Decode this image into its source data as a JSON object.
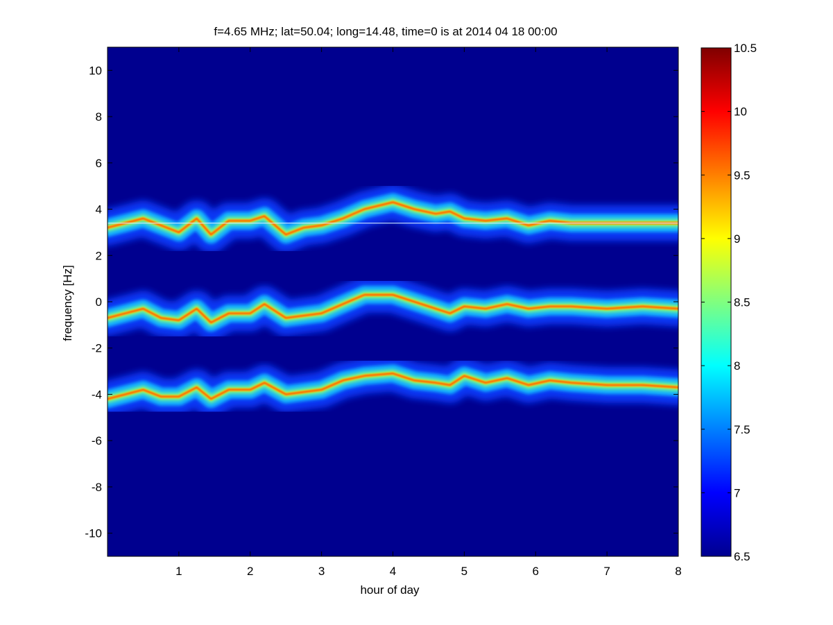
{
  "chart_data": {
    "type": "heatmap",
    "title": "f=4.65 MHz;  lat=50.04; long=14.48, time=0 is at 2014 04 18 00:00",
    "xlabel": "hour of day",
    "ylabel": "frequency [Hz]",
    "xlim": [
      0,
      8
    ],
    "ylim": [
      -11,
      11
    ],
    "x_ticks": [
      1,
      2,
      3,
      4,
      5,
      6,
      7,
      8
    ],
    "x_tick_labels": [
      "1",
      "2",
      "3",
      "4",
      "5",
      "6",
      "7",
      "8"
    ],
    "y_ticks": [
      10,
      8,
      6,
      4,
      2,
      0,
      -2,
      -4,
      -6,
      -8,
      -10
    ],
    "y_tick_labels": [
      "10",
      "8",
      "6",
      "4",
      "2",
      "0",
      "-2",
      "-4",
      "-6",
      "-8",
      "-10"
    ],
    "colorbar": {
      "colormap": "jet",
      "range": [
        6.5,
        10.5
      ],
      "ticks": [
        10.5,
        10,
        9.5,
        9,
        8.5,
        8,
        7.5,
        7,
        6.5
      ],
      "tick_labels": [
        "10.5",
        "10",
        "9.5",
        "9",
        "8.5",
        "8",
        "7.5",
        "7",
        "6.5"
      ]
    },
    "background_color": "#00008f",
    "reference_line_hz": 3.4,
    "bands": [
      {
        "hours": [
          0,
          0.25,
          0.5,
          0.75,
          1.0,
          1.25,
          1.45,
          1.7,
          2.0,
          2.2,
          2.5,
          2.75,
          3.0,
          3.3,
          3.6,
          4.0,
          4.3,
          4.6,
          4.8,
          5.0,
          5.3,
          5.6,
          5.9,
          6.2,
          6.5,
          7.0,
          7.5,
          8.0
        ],
        "center_hz": [
          3.2,
          3.4,
          3.6,
          3.3,
          3.0,
          3.6,
          2.9,
          3.5,
          3.5,
          3.7,
          2.9,
          3.2,
          3.3,
          3.6,
          4.0,
          4.3,
          4.0,
          3.8,
          3.9,
          3.6,
          3.5,
          3.6,
          3.3,
          3.5,
          3.4,
          3.4,
          3.4,
          3.4
        ]
      },
      {
        "hours": [
          0,
          0.25,
          0.5,
          0.75,
          1.0,
          1.25,
          1.45,
          1.7,
          2.0,
          2.2,
          2.5,
          2.75,
          3.0,
          3.3,
          3.6,
          4.0,
          4.3,
          4.6,
          4.8,
          5.0,
          5.3,
          5.6,
          5.9,
          6.2,
          6.5,
          7.0,
          7.5,
          8.0
        ],
        "center_hz": [
          -0.7,
          -0.5,
          -0.3,
          -0.7,
          -0.8,
          -0.3,
          -0.9,
          -0.5,
          -0.5,
          -0.1,
          -0.7,
          -0.6,
          -0.5,
          -0.1,
          0.3,
          0.3,
          0.0,
          -0.3,
          -0.5,
          -0.2,
          -0.3,
          -0.1,
          -0.3,
          -0.2,
          -0.2,
          -0.3,
          -0.2,
          -0.3
        ]
      },
      {
        "hours": [
          0,
          0.25,
          0.5,
          0.75,
          1.0,
          1.25,
          1.45,
          1.7,
          2.0,
          2.2,
          2.5,
          2.75,
          3.0,
          3.3,
          3.6,
          4.0,
          4.3,
          4.6,
          4.8,
          5.0,
          5.3,
          5.6,
          5.9,
          6.2,
          6.5,
          7.0,
          7.5,
          8.0
        ],
        "center_hz": [
          -4.2,
          -4.0,
          -3.8,
          -4.1,
          -4.1,
          -3.7,
          -4.2,
          -3.8,
          -3.8,
          -3.5,
          -4.0,
          -3.9,
          -3.8,
          -3.4,
          -3.2,
          -3.1,
          -3.4,
          -3.5,
          -3.6,
          -3.2,
          -3.5,
          -3.3,
          -3.6,
          -3.4,
          -3.5,
          -3.6,
          -3.6,
          -3.7
        ]
      }
    ]
  }
}
